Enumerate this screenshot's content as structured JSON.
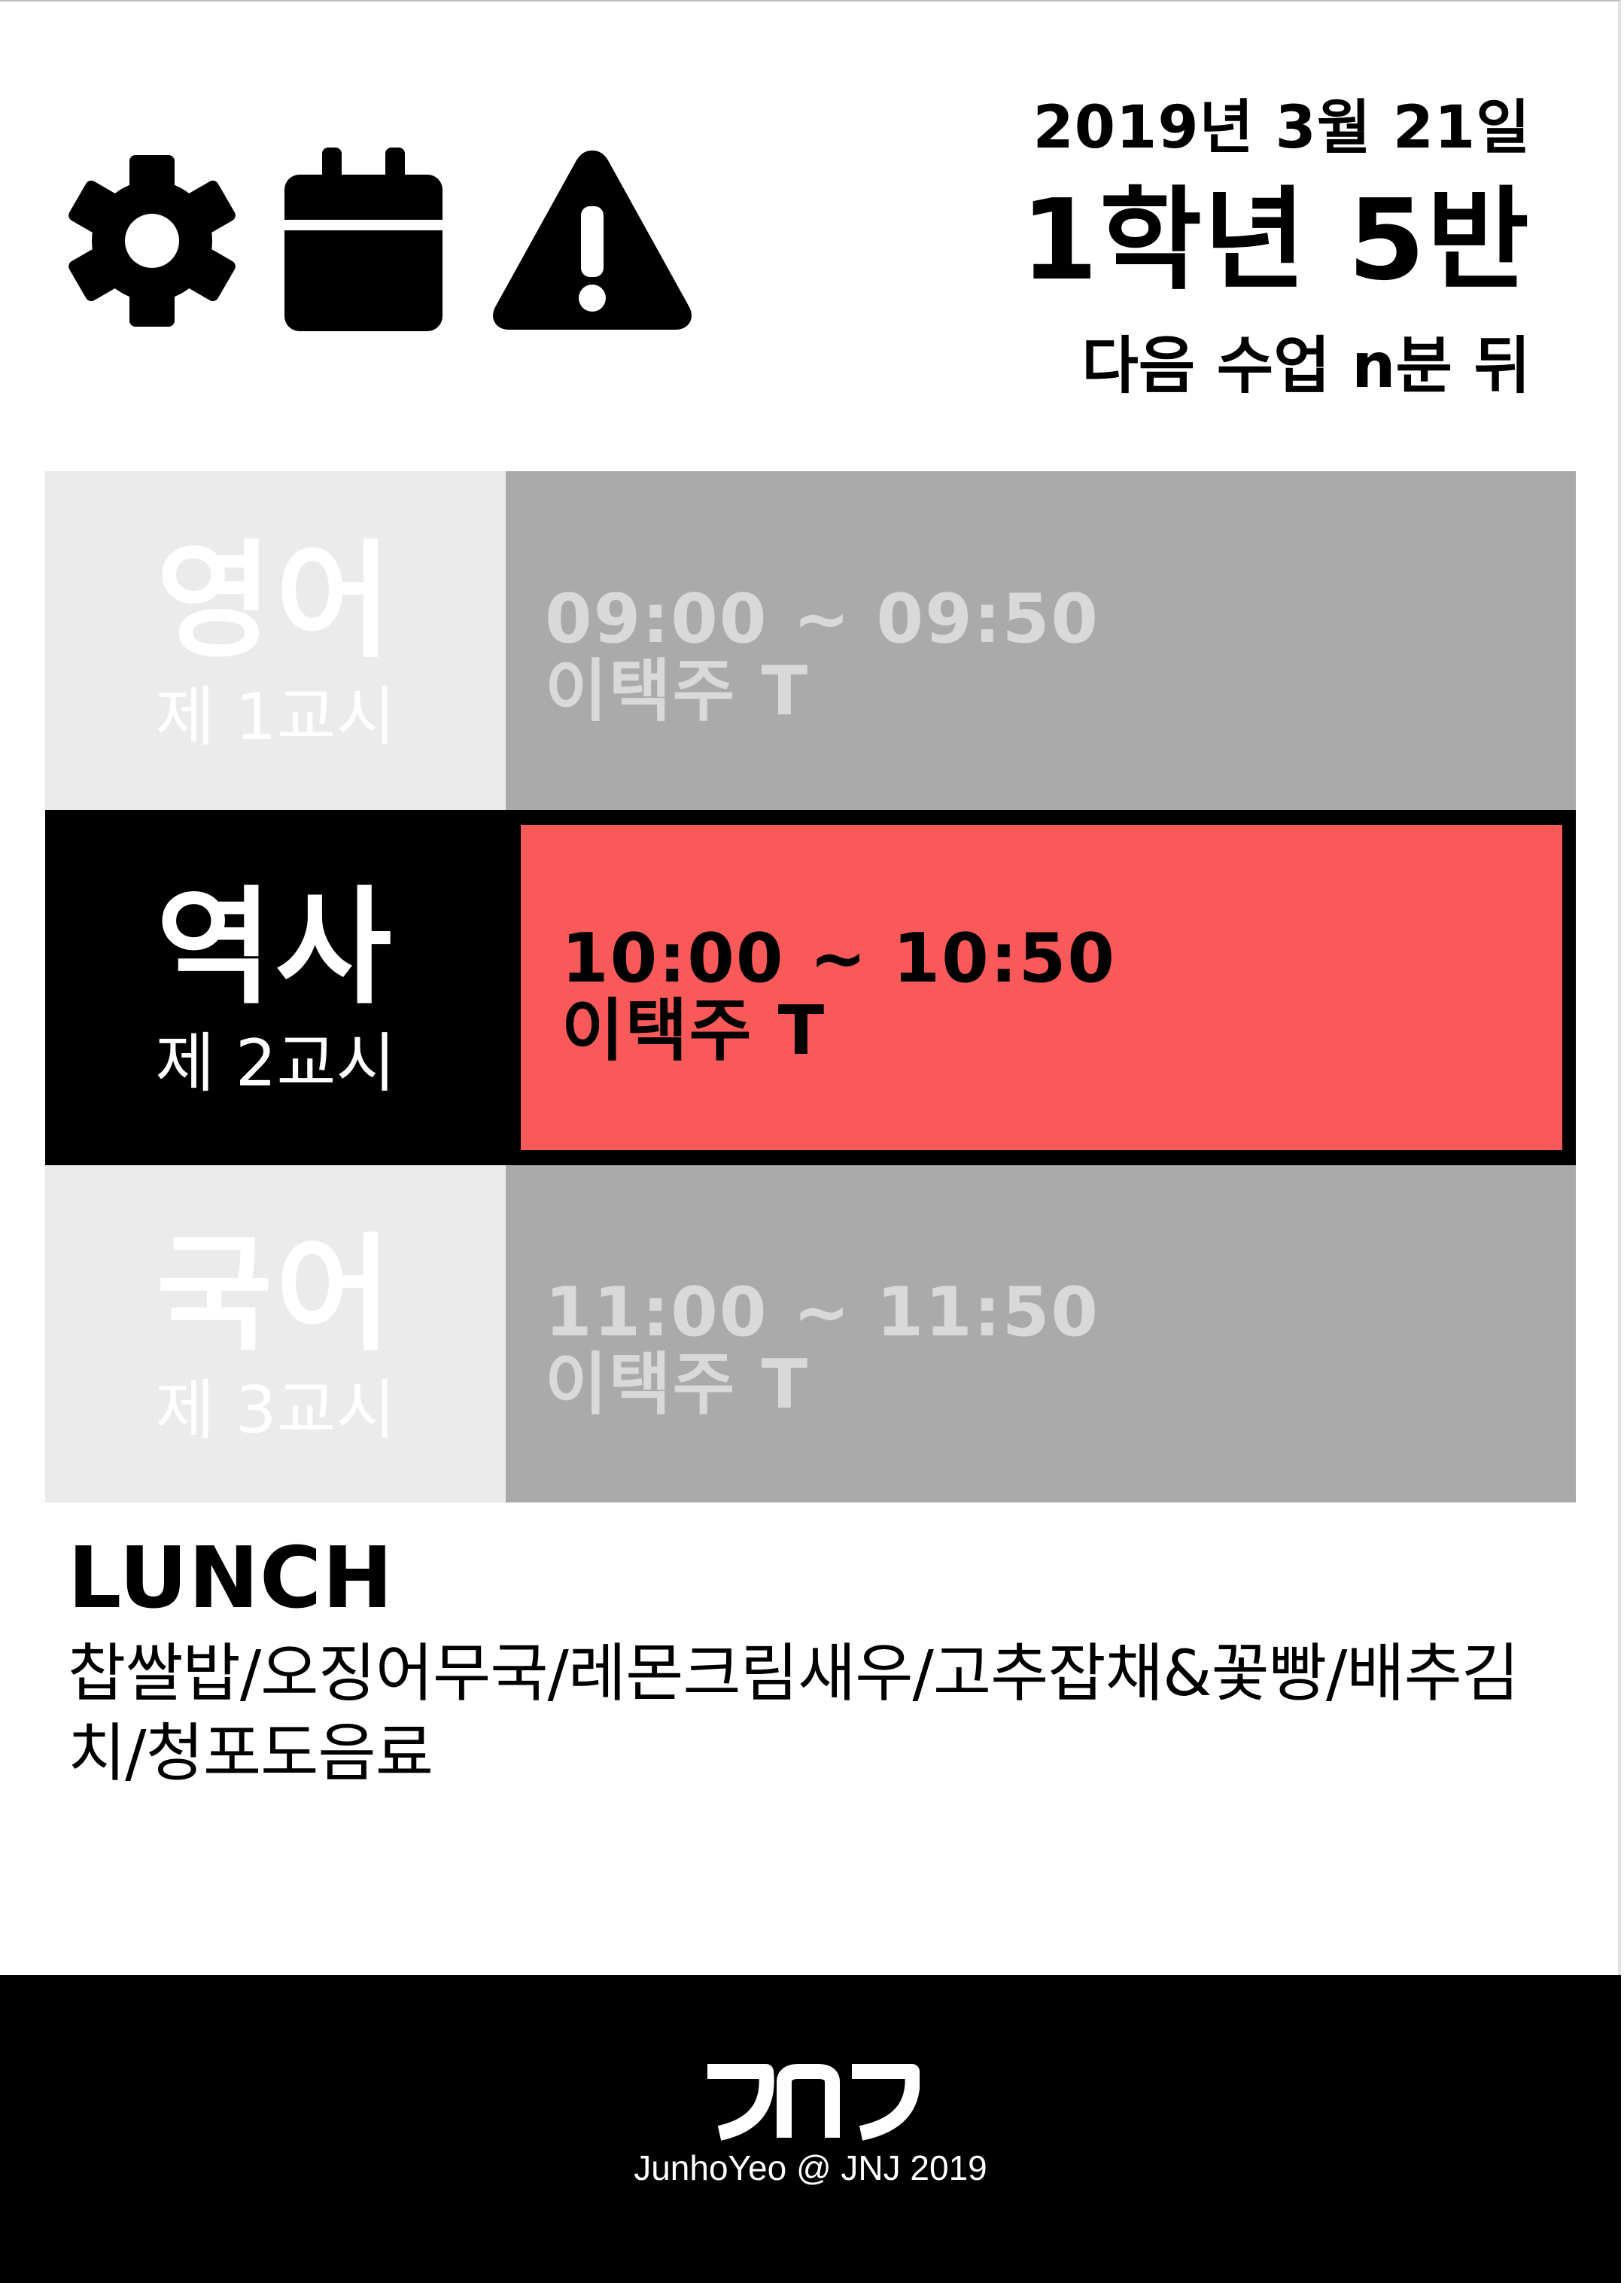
{
  "header": {
    "icons": [
      "gear-icon",
      "calendar-icon",
      "warning-icon"
    ],
    "date": "2019년 3월 21일",
    "class_name": "1학년 5반",
    "next_class": "다음 수업 n분 뒤"
  },
  "schedule": {
    "periods": [
      {
        "subject": "영어",
        "period": "제 1교시",
        "time": "09:00 ~ 09:50",
        "teacher": "이택주 T",
        "active": false
      },
      {
        "subject": "역사",
        "period": "제 2교시",
        "time": "10:00 ~ 10:50",
        "teacher": "이택주 T",
        "active": true
      },
      {
        "subject": "국어",
        "period": "제 3교시",
        "time": "11:00 ~ 11:50",
        "teacher": "이택주 T",
        "active": false
      }
    ]
  },
  "colors": {
    "active_highlight": "#fa595a",
    "inactive_left": "#ebebeb",
    "inactive_right": "#aaaaaa",
    "active_left": "#000000"
  },
  "lunch": {
    "heading": "LUNCH",
    "menu": "찹쌀밥/오징어무국/레몬크림새우/고추잡채&꽃빵/배추김치/청포도음료"
  },
  "footer": {
    "logo": "JNJ",
    "credit": "JunhoYeo @ JNJ 2019"
  }
}
